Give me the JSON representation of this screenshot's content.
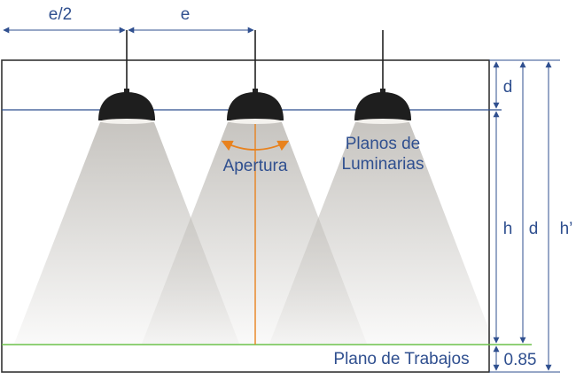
{
  "labels": {
    "half_spacing": "e/2",
    "spacing": "e",
    "mount_distance_top": "d",
    "height_h": "h",
    "height_d": "d",
    "total_height": "h’",
    "workplane_height": "0.85",
    "aperture": "Apertura",
    "luminaire_plane_line1": "Planos de",
    "luminaire_plane_line2": "Luminarias",
    "work_plane": "Plano de Trabajos"
  },
  "colors": {
    "dimension_line": "#2f4f8f",
    "label_text": "#2f4f8f",
    "aperture_line": "#e8821e",
    "work_plane_line": "#6cc04a",
    "frame": "#333333",
    "lamp_shade": "#1e1e1e"
  },
  "icons": [
    "pendant-lamp-icon"
  ]
}
